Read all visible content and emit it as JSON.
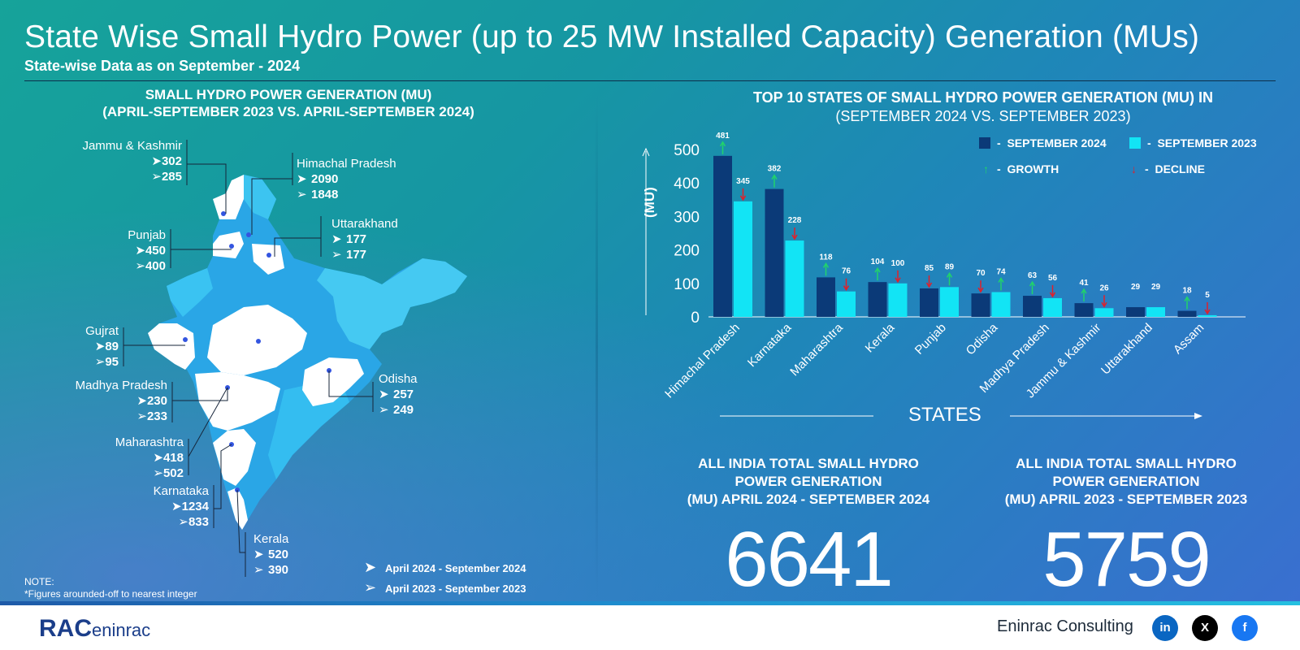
{
  "header": {
    "title": "State Wise Small Hydro Power (up to 25 MW Installed Capacity) Generation (MUs)",
    "subtitle": "State-wise Data as on September - 2024"
  },
  "map_section": {
    "heading_line1": "SMALL HYDRO POWER GENERATION (MU)",
    "heading_line2": "(APRIL-SEPTEMBER 2023 VS. APRIL-SEPTEMBER 2024)",
    "states": [
      {
        "name": "Jammu & Kashmir",
        "v2024": "302",
        "v2023": "285"
      },
      {
        "name": "Himachal Pradesh",
        "v2024": "2090",
        "v2023": "1848"
      },
      {
        "name": "Punjab",
        "v2024": "450",
        "v2023": "400"
      },
      {
        "name": "Uttarakhand",
        "v2024": "177",
        "v2023": "177"
      },
      {
        "name": "Gujrat",
        "v2024": "89",
        "v2023": "95"
      },
      {
        "name": "Madhya Pradesh",
        "v2024": "230",
        "v2023": "233"
      },
      {
        "name": "Odisha",
        "v2024": "257",
        "v2023": "249"
      },
      {
        "name": "Maharashtra",
        "v2024": "418",
        "v2023": "502"
      },
      {
        "name": "Karnataka",
        "v2024": "1234",
        "v2023": "833"
      },
      {
        "name": "Kerala",
        "v2024": "520",
        "v2023": "390"
      }
    ],
    "legend_2024": "April 2024 - September 2024",
    "legend_2023": "April 2023 - September 2023",
    "note_line1": "NOTE:",
    "note_line2": "*Figures arounded-off to nearest integer",
    "map_colors": {
      "white_states": "#ffffff",
      "blue_states": "#3cc4f0",
      "deep_blue": "#2aa6e6"
    }
  },
  "chart_section": {
    "heading_line1": "TOP 10 STATES OF SMALL HYDRO POWER GENERATION (MU) IN",
    "heading_line2": "(SEPTEMBER 2024 VS. SEPTEMBER 2023)",
    "legend": {
      "sep2024": "SEPTEMBER 2024",
      "sep2023": "SEPTEMBER 2023",
      "growth": "GROWTH",
      "decline": "DECLINE",
      "dash": "-"
    },
    "xlabel": "STATES"
  },
  "chart_data": {
    "type": "bar",
    "title": "TOP 10 STATES OF SMALL HYDRO POWER GENERATION (MU) IN",
    "subtitle": "(SEPTEMBER 2024 VS. SEPTEMBER 2023)",
    "xlabel": "STATES",
    "ylabel": "(MU)",
    "ylim": [
      0,
      500
    ],
    "yticks": [
      0,
      100,
      200,
      300,
      400,
      500
    ],
    "categories": [
      "Himachal Pradesh",
      "Karnataka",
      "Maharashtra",
      "Kerala",
      "Punjab",
      "Odisha",
      "Madhya Pradesh",
      "Jammu & Kashmir",
      "Uttarakhand",
      "Assam"
    ],
    "series": [
      {
        "name": "SEPTEMBER 2024",
        "color": "#0b3a78",
        "values": [
          481,
          382,
          118,
          104,
          85,
          70,
          63,
          41,
          29,
          18
        ]
      },
      {
        "name": "SEPTEMBER 2023",
        "color": "#12e4f5",
        "values": [
          345,
          228,
          76,
          100,
          89,
          74,
          56,
          26,
          29,
          5
        ]
      }
    ],
    "arrows_2024": [
      "growth",
      "growth",
      "growth",
      "growth",
      "decline",
      "decline",
      "growth",
      "growth",
      "none",
      "growth"
    ],
    "arrows_2023": [
      "decline",
      "decline",
      "decline",
      "decline",
      "growth",
      "growth",
      "decline",
      "decline",
      "none",
      "decline"
    ],
    "legend_position": "top-right",
    "grid": false
  },
  "totals": {
    "left_heading": [
      "ALL INDIA TOTAL SMALL HYDRO",
      "POWER GENERATION",
      "(MU) APRIL 2024 - SEPTEMBER 2024"
    ],
    "left_value": "6641",
    "right_heading": [
      "ALL INDIA TOTAL SMALL HYDRO",
      "POWER GENERATION",
      "(MU) APRIL 2023 - SEPTEMBER 2023"
    ],
    "right_value": "5759"
  },
  "footer": {
    "logo_main": "RAC",
    "logo_text": "eninrac",
    "company": "Eninrac Consulting",
    "social": {
      "linkedin": "in",
      "x": "X",
      "facebook": "f"
    }
  },
  "colors": {
    "growth": "#21d36b",
    "decline": "#e0202a",
    "dark_bar": "#0b3a78",
    "light_bar": "#12e4f5"
  }
}
